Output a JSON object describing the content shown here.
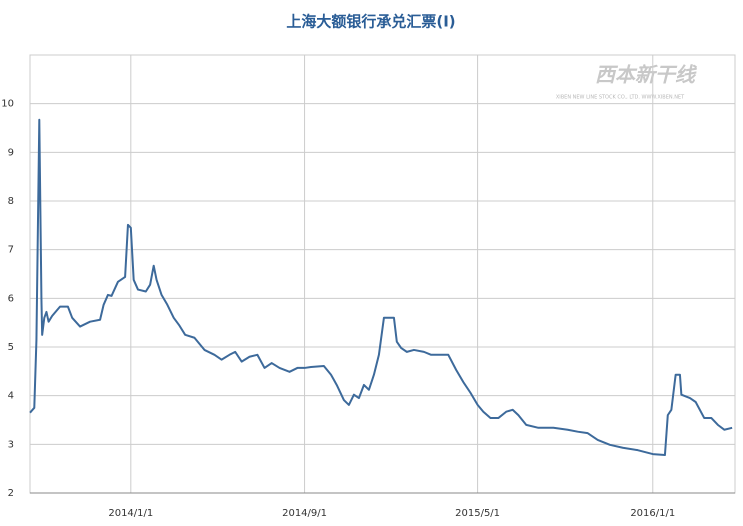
{
  "chart_data": {
    "type": "line",
    "title": "上海大额银行承兑汇票(Ⅰ)",
    "watermark": "西本新干线",
    "watermark_sub": "XIBEN NEW LINE STOCK CO., LTD.  WWW.XIBEN.NET",
    "grid": true,
    "color": "#3d6a9b",
    "xlim": [
      "2013/8/13",
      "2016/4/25"
    ],
    "xticks": [
      "2014/1/1",
      "2014/9/1",
      "2015/5/1",
      "2016/1/1"
    ],
    "ylim": [
      2,
      11
    ],
    "yticks": [
      2,
      3,
      4,
      5,
      6,
      7,
      8,
      9,
      10
    ],
    "x": [
      "2013/8/13",
      "2013/8/19",
      "2013/8/22",
      "2013/8/26",
      "2013/8/29",
      "2013/8/30",
      "2013/9/2",
      "2013/9/5",
      "2013/9/8",
      "2013/9/13",
      "2013/9/24",
      "2013/10/5",
      "2013/10/11",
      "2013/10/22",
      "2013/11/5",
      "2013/11/19",
      "2013/11/24",
      "2013/11/30",
      "2013/12/5",
      "2013/12/14",
      "2013/12/24",
      "2013/12/28",
      "2014/1/1",
      "2014/1/5",
      "2014/1/11",
      "2014/1/22",
      "2014/1/28",
      "2014/2/2",
      "2014/2/6",
      "2014/2/13",
      "2014/2/21",
      "2014/3/2",
      "2014/3/10",
      "2014/3/18",
      "2014/3/31",
      "2014/4/14",
      "2014/4/28",
      "2014/5/8",
      "2014/5/19",
      "2014/5/27",
      "2014/6/5",
      "2014/6/16",
      "2014/6/27",
      "2014/7/7",
      "2014/7/17",
      "2014/7/28",
      "2014/8/11",
      "2014/8/22",
      "2014/9/1",
      "2014/9/10",
      "2014/9/28",
      "2014/10/8",
      "2014/10/16",
      "2014/10/26",
      "2014/11/2",
      "2014/11/9",
      "2014/11/16",
      "2014/11/23",
      "2014/11/30",
      "2014/12/7",
      "2014/12/14",
      "2014/12/21",
      "2014/12/28",
      "2015/1/4",
      "2015/1/8",
      "2015/1/14",
      "2015/1/22",
      "2015/2/1",
      "2015/2/15",
      "2015/2/25",
      "2015/3/7",
      "2015/3/21",
      "2015/4/1",
      "2015/4/11",
      "2015/4/21",
      "2015/5/1",
      "2015/5/9",
      "2015/5/19",
      "2015/5/30",
      "2015/6/10",
      "2015/6/19",
      "2015/6/27",
      "2015/7/8",
      "2015/7/25",
      "2015/8/15",
      "2015/9/4",
      "2015/9/18",
      "2015/10/2",
      "2015/10/16",
      "2015/11/2",
      "2015/11/20",
      "2015/12/11",
      "2016/1/1",
      "2016/1/18",
      "2016/1/22",
      "2016/1/27",
      "2016/2/2",
      "2016/2/8",
      "2016/2/10",
      "2016/2/22",
      "2016/3/1",
      "2016/3/13",
      "2016/3/23",
      "2016/4/1",
      "2016/4/10",
      "2016/4/21"
    ],
    "series": [
      {
        "name": "上海大额银行承兑汇票(Ⅰ)",
        "color": "#3d6a9b",
        "values": [
          3.65,
          3.75,
          5.15,
          9.67,
          5.97,
          5.25,
          5.6,
          5.72,
          5.52,
          5.64,
          5.83,
          5.83,
          5.6,
          5.42,
          5.52,
          5.56,
          5.87,
          6.07,
          6.05,
          6.34,
          6.44,
          7.51,
          7.45,
          6.38,
          6.18,
          6.14,
          6.28,
          6.67,
          6.38,
          6.07,
          5.87,
          5.6,
          5.44,
          5.25,
          5.19,
          4.94,
          4.84,
          4.74,
          4.84,
          4.9,
          4.7,
          4.8,
          4.84,
          4.57,
          4.67,
          4.57,
          4.49,
          4.57,
          4.57,
          4.59,
          4.61,
          4.43,
          4.22,
          3.91,
          3.81,
          4.02,
          3.95,
          4.22,
          4.12,
          4.43,
          4.84,
          5.6,
          5.6,
          5.6,
          5.11,
          4.98,
          4.9,
          4.94,
          4.9,
          4.84,
          4.84,
          4.84,
          4.53,
          4.28,
          4.06,
          3.81,
          3.67,
          3.54,
          3.54,
          3.67,
          3.71,
          3.6,
          3.4,
          3.34,
          3.34,
          3.3,
          3.26,
          3.23,
          3.09,
          2.99,
          2.93,
          2.88,
          2.8,
          2.78,
          3.6,
          3.71,
          4.43,
          4.43,
          4.02,
          3.95,
          3.87,
          3.54,
          3.54,
          3.4,
          3.3,
          3.34
        ]
      }
    ]
  }
}
